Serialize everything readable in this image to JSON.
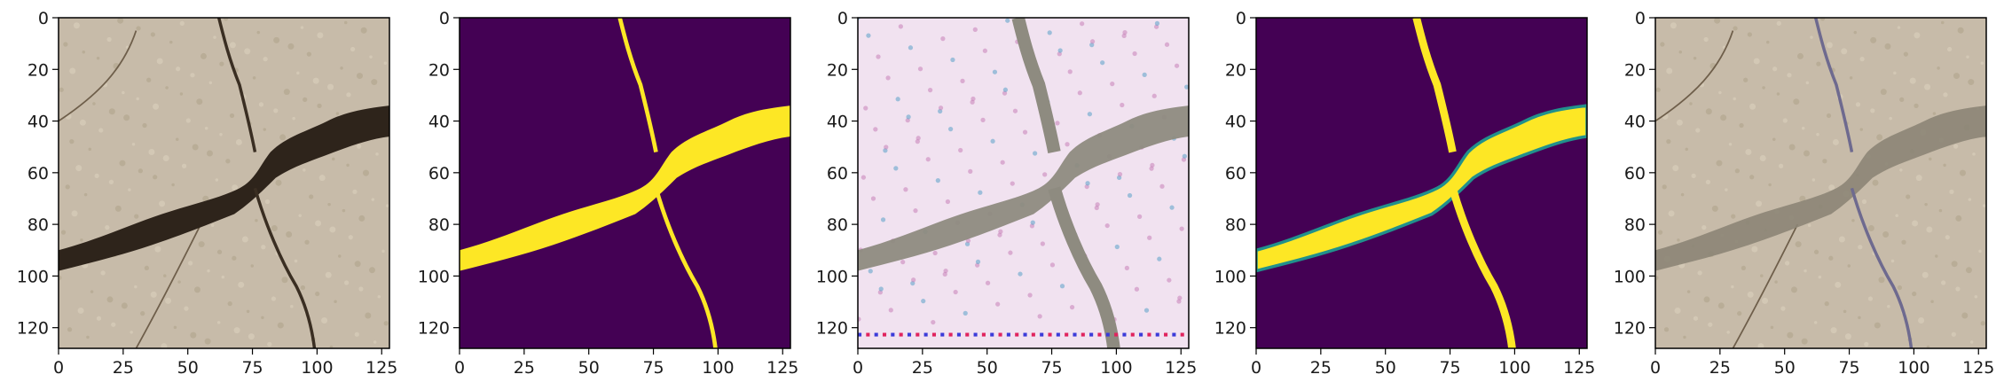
{
  "chart_data": [
    {
      "type": "heatmap",
      "panel": "original-photo",
      "content": "cracked pavement photograph",
      "xlim": [
        0,
        128
      ],
      "ylim": [
        128,
        0
      ],
      "x_ticks": [
        "0",
        "25",
        "50",
        "75",
        "100",
        "125"
      ],
      "y_ticks": [
        "0",
        "20",
        "40",
        "60",
        "80",
        "100",
        "120"
      ],
      "colors": {
        "background": "#c7bba9",
        "crack": "#2e241b",
        "shade": "#a69983"
      }
    },
    {
      "type": "heatmap",
      "panel": "ground-truth-mask",
      "content": "binary crack mask",
      "colormap": "viridis",
      "values": [
        0,
        1
      ],
      "xlim": [
        0,
        128
      ],
      "ylim": [
        128,
        0
      ],
      "x_ticks": [
        "0",
        "25",
        "50",
        "75",
        "100",
        "125"
      ],
      "y_ticks": [
        "0",
        "20",
        "40",
        "60",
        "80",
        "100",
        "120"
      ],
      "colors": {
        "background": "#440154",
        "crack": "#fde725"
      }
    },
    {
      "type": "heatmap",
      "panel": "generated-image",
      "content": "synthesized texture with artifacts",
      "xlim": [
        0,
        128
      ],
      "ylim": [
        128,
        0
      ],
      "x_ticks": [
        "0",
        "25",
        "50",
        "75",
        "100",
        "125"
      ],
      "y_ticks": [
        "0",
        "20",
        "40",
        "60",
        "80",
        "100",
        "120"
      ],
      "colors": {
        "background": "#f1e2f0",
        "crack": "#8e8b80",
        "tint": "#c77fb8",
        "edge": "#5aa0c8"
      }
    },
    {
      "type": "heatmap",
      "panel": "predicted-mask",
      "content": "smooth predicted crack probability",
      "colormap": "viridis",
      "values": [
        0,
        1
      ],
      "xlim": [
        0,
        128
      ],
      "ylim": [
        128,
        0
      ],
      "x_ticks": [
        "0",
        "25",
        "50",
        "75",
        "100",
        "125"
      ],
      "y_ticks": [
        "0",
        "20",
        "40",
        "60",
        "80",
        "100",
        "120"
      ],
      "colors": {
        "background": "#440154",
        "crack": "#fde725",
        "edge": "#21918c"
      }
    },
    {
      "type": "heatmap",
      "panel": "composited-image",
      "content": "photo with filled crack",
      "xlim": [
        0,
        128
      ],
      "ylim": [
        128,
        0
      ],
      "x_ticks": [
        "0",
        "25",
        "50",
        "75",
        "100",
        "125"
      ],
      "y_ticks": [
        "0",
        "20",
        "40",
        "60",
        "80",
        "100",
        "120"
      ],
      "colors": {
        "background": "#c7bba9",
        "crack": "#8c8576",
        "line": "#6e6a8f"
      }
    }
  ]
}
